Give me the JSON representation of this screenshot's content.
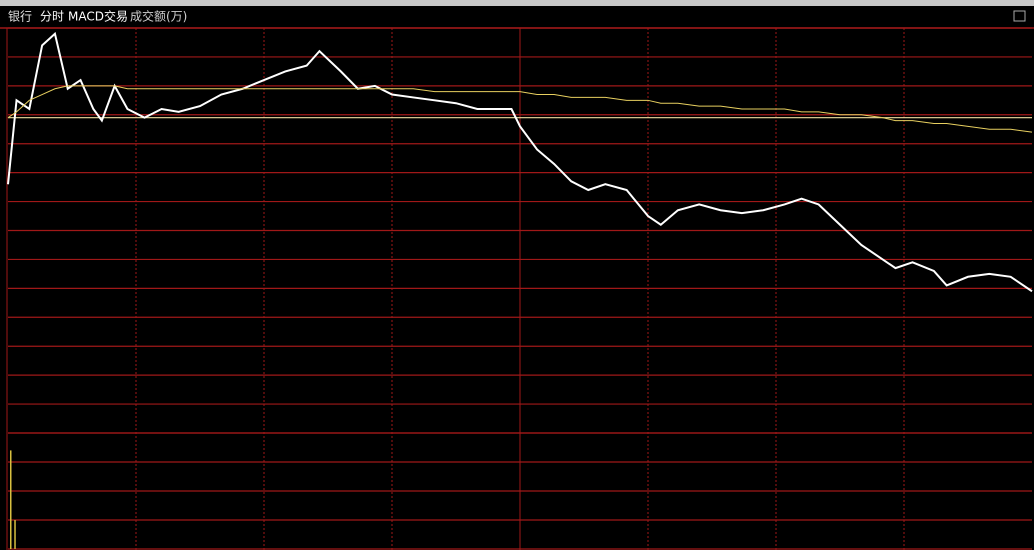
{
  "header": {
    "labels": [
      "银行",
      "分时",
      "MACD交易",
      "成交额(万)"
    ]
  },
  "chart_data": [
    {
      "type": "line",
      "x": [
        0,
        2,
        5,
        8,
        11,
        14,
        17,
        20,
        22,
        25,
        28,
        32,
        36,
        40,
        45,
        50,
        55,
        60,
        65,
        70,
        73,
        78,
        82,
        86,
        90,
        95,
        100,
        105,
        110,
        115,
        118,
        120,
        124,
        128,
        132,
        136,
        140,
        145,
        150,
        153,
        157,
        162,
        167,
        172,
        177,
        182,
        186,
        190,
        195,
        200,
        205,
        208,
        212,
        217,
        220,
        225,
        230,
        235,
        240
      ],
      "xlim": [
        0,
        240
      ],
      "ylim": [
        0,
        14
      ],
      "yticks": [
        0,
        1,
        2,
        3,
        4,
        5,
        6,
        7,
        8,
        9,
        10,
        11,
        12,
        13,
        14
      ],
      "reference": 10.9,
      "grid": true,
      "series": [
        {
          "color": "#ffffff",
          "values": [
            8.6,
            11.5,
            11.2,
            13.4,
            13.8,
            11.9,
            12.2,
            11.2,
            10.8,
            12.0,
            11.2,
            10.9,
            11.2,
            11.1,
            11.3,
            11.7,
            11.9,
            12.2,
            12.5,
            12.7,
            13.2,
            12.5,
            11.9,
            12.0,
            11.7,
            11.6,
            11.5,
            11.4,
            11.2,
            11.2,
            11.2,
            10.6,
            9.8,
            9.3,
            8.7,
            8.4,
            8.6,
            8.4,
            7.5,
            7.2,
            7.7,
            7.9,
            7.7,
            7.6,
            7.7,
            7.9,
            8.1,
            7.9,
            7.2,
            6.5,
            6.0,
            5.7,
            5.9,
            5.6,
            5.1,
            5.4,
            5.5,
            5.4,
            4.9
          ]
        },
        {
          "color": "#e8d060",
          "values": [
            10.9,
            11.1,
            11.5,
            11.7,
            11.9,
            12.0,
            12.0,
            12.0,
            12.0,
            12.0,
            11.9,
            11.9,
            11.9,
            11.9,
            11.9,
            11.9,
            11.9,
            11.9,
            11.9,
            11.9,
            11.9,
            11.9,
            11.9,
            11.9,
            11.9,
            11.9,
            11.8,
            11.8,
            11.8,
            11.8,
            11.8,
            11.8,
            11.7,
            11.7,
            11.6,
            11.6,
            11.6,
            11.5,
            11.5,
            11.4,
            11.4,
            11.3,
            11.3,
            11.2,
            11.2,
            11.2,
            11.1,
            11.1,
            11.0,
            11.0,
            10.9,
            10.8,
            10.8,
            10.7,
            10.7,
            10.6,
            10.5,
            10.5,
            10.4
          ]
        }
      ]
    },
    {
      "type": "bar",
      "x": [
        0,
        1
      ],
      "xlim": [
        0,
        240
      ],
      "ylim": [
        0,
        4
      ],
      "yticks": [
        0,
        1,
        2,
        3,
        4
      ],
      "grid": true,
      "color": "#d8c040",
      "values": [
        3.4,
        1.0
      ]
    }
  ]
}
